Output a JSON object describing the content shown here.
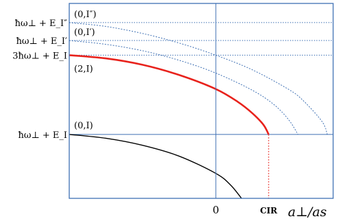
{
  "chart_data": {
    "type": "line",
    "title": "",
    "xlabel": "a⊥/as",
    "ylabel": "",
    "grid": false,
    "legend": "none",
    "x_ticks": [
      "0"
    ],
    "x_markers": [
      {
        "label": "CIR",
        "x": 0.72
      }
    ],
    "xlim": [
      -2.0,
      1.6
    ],
    "ylim": [
      -1.0,
      2.05
    ],
    "energy_levels": [
      {
        "label": "ħω⊥ + E_I″",
        "y": 1.75,
        "style": "dotted"
      },
      {
        "label": "ħω⊥ + E_I′",
        "y": 1.47,
        "style": "dotted"
      },
      {
        "label": "3ħω⊥ + E_I",
        "y": 1.24,
        "style": "dotted"
      },
      {
        "label": "ħω⊥ + E_I",
        "y": 0.0,
        "style": "solid"
      }
    ],
    "series": [
      {
        "name": "(0,I″)",
        "color": "#3d6fb3",
        "style": "dotted",
        "x": [
          -2.0,
          -1.5,
          -1.0,
          -0.5,
          0.0,
          0.5,
          1.0,
          1.2,
          1.45,
          1.52
        ],
        "y": [
          1.75,
          1.69,
          1.58,
          1.43,
          1.24,
          1.01,
          0.7,
          0.52,
          0.2,
          0.0
        ]
      },
      {
        "name": "(0,I′)",
        "color": "#3d6fb3",
        "style": "dotted",
        "x": [
          -2.0,
          -1.5,
          -1.0,
          -0.5,
          0.0,
          0.5,
          0.8,
          1.0,
          1.12
        ],
        "y": [
          1.47,
          1.41,
          1.31,
          1.16,
          0.96,
          0.69,
          0.46,
          0.22,
          0.0
        ]
      },
      {
        "name": "(2,I)",
        "color": "#e8221c",
        "style": "solid",
        "x": [
          -2.0,
          -1.5,
          -1.0,
          -0.5,
          0.0,
          0.3,
          0.5,
          0.65,
          0.72
        ],
        "y": [
          1.24,
          1.19,
          1.09,
          0.93,
          0.71,
          0.51,
          0.33,
          0.15,
          0.0
        ]
      },
      {
        "name": "(0,I)",
        "color": "#000000",
        "style": "solid",
        "x": [
          -2.0,
          -1.5,
          -1.0,
          -0.5,
          0.0,
          0.2,
          0.35
        ],
        "y": [
          0.0,
          -0.06,
          -0.17,
          -0.34,
          -0.61,
          -0.79,
          -1.0
        ]
      }
    ],
    "annotations": [
      {
        "text": "(0,I″)",
        "series": "(0,I″)"
      },
      {
        "text": "(0,I′)",
        "series": "(0,I′)"
      },
      {
        "text": "(2,I)",
        "series": "(2,I)"
      },
      {
        "text": "(0,I)",
        "series": "(0,I)"
      }
    ]
  }
}
